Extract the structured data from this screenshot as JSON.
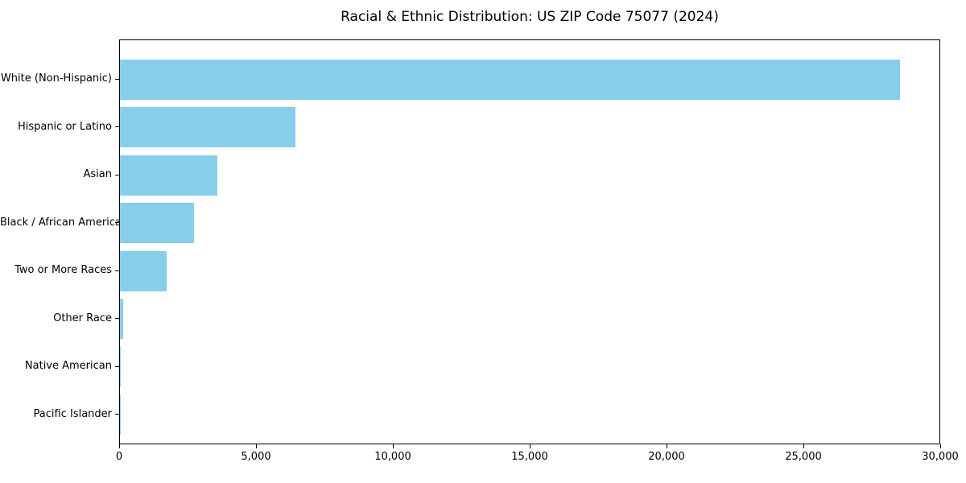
{
  "chart_data": {
    "type": "bar",
    "orientation": "horizontal",
    "title": "Racial & Ethnic Distribution: US ZIP Code 75077 (2024)",
    "xlabel": "",
    "ylabel": "",
    "categories": [
      "White (Non-Hispanic)",
      "Hispanic or Latino",
      "Asian",
      "Black / African American",
      "Two or More Races",
      "Other Race",
      "Native American",
      "Pacific Islander"
    ],
    "values": [
      28500,
      6400,
      3550,
      2700,
      1700,
      130,
      25,
      10
    ],
    "xlim": [
      0,
      30000
    ],
    "x_ticks": [
      0,
      5000,
      10000,
      15000,
      20000,
      25000,
      30000
    ],
    "x_tick_labels": [
      "0",
      "5,000",
      "10,000",
      "15,000",
      "20,000",
      "25,000",
      "30,000"
    ],
    "bar_color": "#87CEEB",
    "axis_color": "#000000",
    "text_color": "#000000",
    "grid": false,
    "legend": false
  }
}
